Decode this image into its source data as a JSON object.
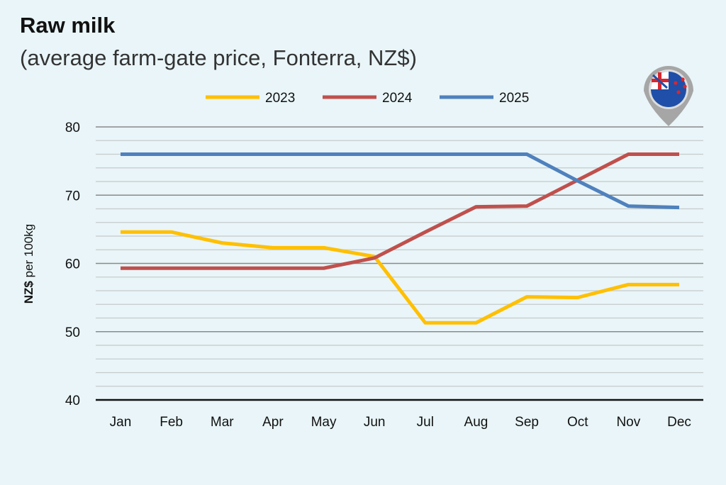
{
  "header": {
    "title": "Raw milk",
    "subtitle": "(average farm-gate price, Fonterra, NZ$)"
  },
  "flag_icon": "new-zealand-flag-map-pin-icon",
  "chart_data": {
    "type": "line",
    "title": "Raw milk",
    "subtitle": "(average farm-gate price, Fonterra, NZ$)",
    "xlabel": "",
    "ylabel_bold": "NZ$",
    "ylabel_rest": " per 100kg",
    "categories": [
      "Jan",
      "Feb",
      "Mar",
      "Apr",
      "May",
      "Jun",
      "Jul",
      "Aug",
      "Sep",
      "Oct",
      "Nov",
      "Dec"
    ],
    "ylim": [
      40,
      80
    ],
    "yticks": [
      40,
      50,
      60,
      70,
      80
    ],
    "minor_grid_step": 2,
    "grid": true,
    "legend_position": "top",
    "series": [
      {
        "name": "2023",
        "color": "#ffc000",
        "values": [
          64.6,
          64.6,
          63.0,
          62.3,
          62.3,
          61.0,
          51.3,
          51.3,
          55.1,
          55.0,
          56.9,
          56.9
        ]
      },
      {
        "name": "2024",
        "color": "#c0504d",
        "values": [
          59.3,
          59.3,
          59.3,
          59.3,
          59.3,
          60.8,
          64.6,
          68.3,
          68.4,
          72.2,
          76.0,
          76.0
        ]
      },
      {
        "name": "2025",
        "color": "#4f81bd",
        "values": [
          76.0,
          76.0,
          76.0,
          76.0,
          76.0,
          76.0,
          76.0,
          76.0,
          76.0,
          72.1,
          68.4,
          68.2
        ]
      }
    ]
  }
}
